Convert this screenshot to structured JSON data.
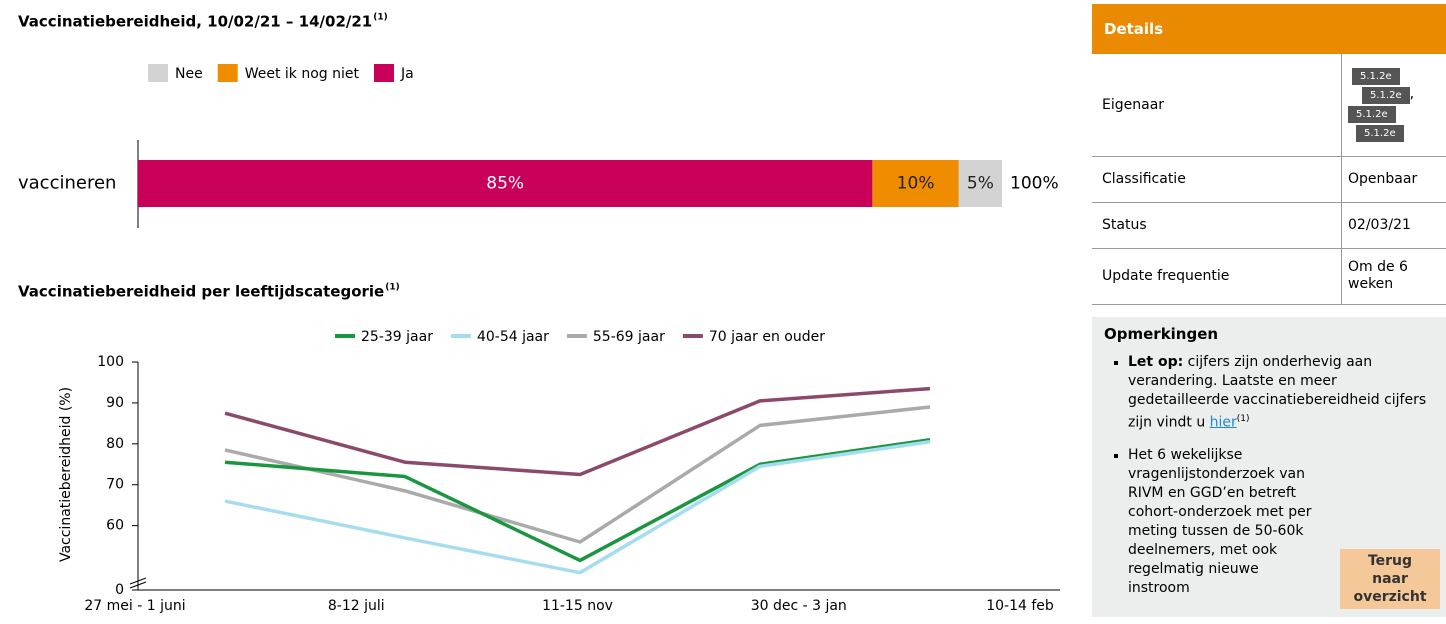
{
  "chart_data": [
    {
      "type": "bar",
      "orientation": "horizontal",
      "stacked": true,
      "title": "Vaccinatiebereidheid, 10/02/21 – 14/02/21",
      "title_note": "(1)",
      "categories": [
        "vaccineren"
      ],
      "series": [
        {
          "name": "Nee",
          "color": "#d3d3d3",
          "values": [
            5
          ],
          "value_labels": [
            "5%"
          ]
        },
        {
          "name": "Weet ik nog niet",
          "color": "#f08c00",
          "values": [
            10
          ],
          "value_labels": [
            "10%"
          ]
        },
        {
          "name": "Ja",
          "color": "#c9005a",
          "values": [
            85
          ],
          "value_labels": [
            "85%"
          ]
        }
      ],
      "totals": [
        100
      ],
      "total_labels": [
        "100%"
      ],
      "xlim": [
        0,
        100
      ]
    },
    {
      "type": "line",
      "title": "Vaccinatiebereidheid per leeftijdscategorie",
      "title_note": "(1)",
      "y_label": "Vaccinatiebereidheid (%)",
      "categories": [
        "27 mei - 1 juni",
        "8-12 juli",
        "11-15 nov",
        "30 dec - 3 jan",
        "10-14 feb"
      ],
      "series": [
        {
          "name": "25-39 jaar",
          "color": "#1a9641",
          "values": [
            75.5,
            72,
            51.5,
            75,
            81
          ]
        },
        {
          "name": "40-54 jaar",
          "color": "#a6dcef",
          "values": [
            66,
            57,
            48.5,
            74.5,
            80.5
          ]
        },
        {
          "name": "55-69 jaar",
          "color": "#aaaaaa",
          "values": [
            78.5,
            68.5,
            56,
            84.5,
            89
          ]
        },
        {
          "name": "70 jaar en ouder",
          "color": "#8b4a6b",
          "values": [
            87.5,
            75.5,
            72.5,
            90.5,
            93.5
          ]
        }
      ],
      "ylim": [
        45,
        100
      ],
      "yticks": [
        0,
        60,
        70,
        80,
        90,
        100
      ],
      "axis_break": true
    }
  ],
  "details": {
    "title": "Details",
    "owner_label": "Eigenaar",
    "owner_values": [
      "5.1.2e",
      "5.1.2e",
      "5.1.2e",
      "5.1.2e"
    ],
    "owner_sep": ",",
    "rows": [
      [
        "Classificatie",
        "Openbaar"
      ],
      [
        "Status",
        "02/03/21"
      ],
      [
        "Update frequentie",
        "Om de 6 weken"
      ]
    ]
  },
  "remarks": {
    "title": "Opmerkingen",
    "item1_bold": "Let op:",
    "item1_text": " cijfers zijn onderhevig aan verandering. Laatste en meer gedetailleerde vaccinatiebereidheid cijfers zijn vindt u ",
    "item1_link": "hier",
    "item1_note": "(1)",
    "item2_text": "Het 6 wekelijkse vragenlijstonderzoek van RIVM en GGD’en betreft cohort-onderzoek met per meting tussen de 50-60k deelnemers, met ook regelmatig nieuwe instroom",
    "button": "Terug naar overzicht"
  }
}
